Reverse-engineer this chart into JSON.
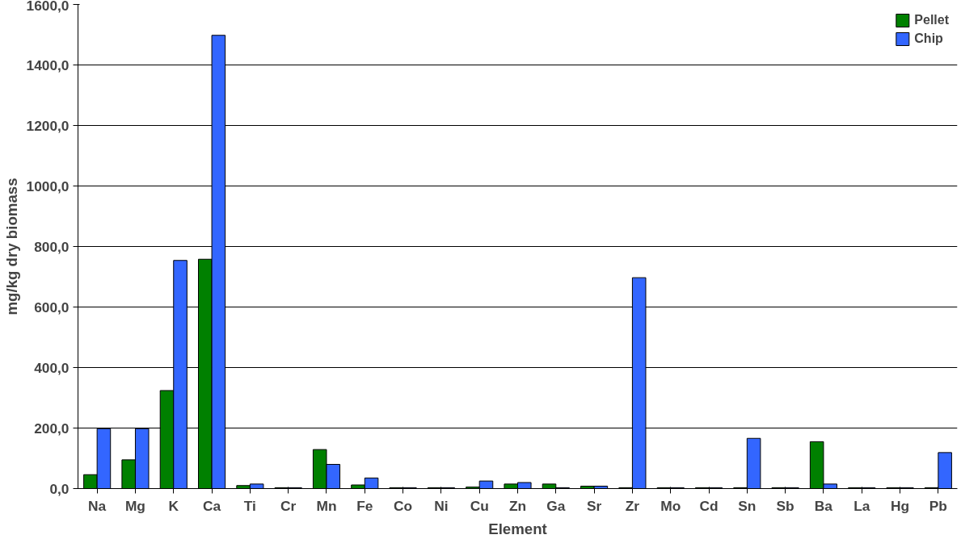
{
  "chart_data": {
    "type": "bar",
    "xlabel": "Element",
    "ylabel": "mg/kg dry biomass",
    "categories": [
      "Na",
      "Mg",
      "K",
      "Ca",
      "Ti",
      "Cr",
      "Mn",
      "Fe",
      "Co",
      "Ni",
      "Cu",
      "Zn",
      "Ga",
      "Sr",
      "Zr",
      "Mo",
      "Cd",
      "Sn",
      "Sb",
      "Ba",
      "La",
      "Hg",
      "Pb"
    ],
    "series": [
      {
        "name": "Pellet",
        "color": "#008000",
        "values": [
          46,
          95,
          324,
          758,
          10,
          3,
          129,
          12,
          3,
          3,
          5,
          15,
          15,
          8,
          3,
          3,
          3,
          3,
          3,
          155,
          3,
          3,
          3
        ]
      },
      {
        "name": "Chip",
        "color": "#3366ff",
        "values": [
          198,
          198,
          754,
          1498,
          15,
          3,
          80,
          35,
          3,
          3,
          25,
          20,
          3,
          8,
          697,
          3,
          3,
          166,
          3,
          15,
          3,
          3,
          119
        ]
      }
    ],
    "ylim": [
      0,
      1600
    ],
    "yticks": [
      {
        "value": 0,
        "label": "0,0"
      },
      {
        "value": 200,
        "label": "200,0"
      },
      {
        "value": 400,
        "label": "400,0"
      },
      {
        "value": 600,
        "label": "600,0"
      },
      {
        "value": 800,
        "label": "800,0"
      },
      {
        "value": 1000,
        "label": "1000,0"
      },
      {
        "value": 1200,
        "label": "1200,0"
      },
      {
        "value": 1400,
        "label": "1400,0"
      },
      {
        "value": 1600,
        "label": "1600,0"
      }
    ],
    "grid": "y",
    "legend": "top right"
  }
}
